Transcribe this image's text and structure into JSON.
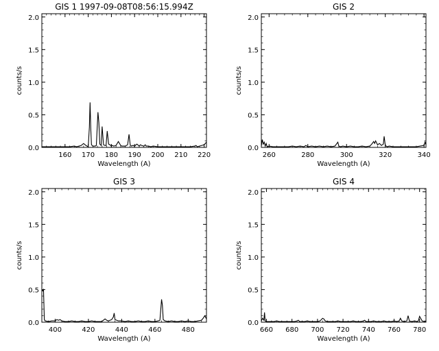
{
  "chart_data": [
    {
      "type": "line",
      "title": "GIS 1 1997-09-08T08:56:15.994Z",
      "xlabel": "Wavelength (A)",
      "ylabel": "counts/s",
      "xlim": [
        150,
        221
      ],
      "ylim": [
        0,
        2.05
      ],
      "xticks": [
        160,
        170,
        180,
        190,
        200,
        210,
        220
      ],
      "yticks": [
        0.0,
        0.5,
        1.0,
        1.5,
        2.0
      ],
      "series": [
        {
          "x": [
            150,
            152,
            154,
            156,
            158,
            160,
            162,
            164,
            165,
            166,
            167,
            168,
            169,
            170,
            170.5,
            170.8,
            171.1,
            171.4,
            172,
            173,
            173.5,
            174.2,
            174.6,
            175,
            175.6,
            176,
            176.6,
            177.2,
            177.7,
            178.2,
            178.8,
            179.4,
            179.9,
            180.4,
            181,
            182,
            183,
            184,
            184.5,
            185,
            186,
            187,
            187.6,
            188.1,
            188.6,
            189.3,
            190,
            191,
            192,
            192.5,
            193,
            194,
            194.6,
            195,
            196,
            197,
            198,
            200,
            202,
            204,
            206,
            208,
            210,
            212,
            214,
            216,
            216.5,
            217,
            218,
            219,
            220,
            221
          ],
          "y": [
            0.01,
            0.01,
            0.01,
            0.01,
            0.01,
            0.01,
            0.01,
            0.02,
            0.01,
            0.02,
            0.03,
            0.06,
            0.03,
            0.01,
            0.31,
            0.69,
            0.29,
            0.04,
            0.02,
            0.02,
            0.03,
            0.54,
            0.38,
            0.05,
            0.03,
            0.32,
            0.04,
            0.03,
            0.03,
            0.25,
            0.05,
            0.04,
            0.02,
            0.03,
            0.02,
            0.03,
            0.09,
            0.03,
            0.02,
            0.02,
            0.02,
            0.04,
            0.2,
            0.04,
            0.02,
            0.03,
            0.02,
            0.05,
            0.02,
            0.04,
            0.03,
            0.02,
            0.04,
            0.02,
            0.02,
            0.01,
            0.02,
            0.01,
            0.01,
            0.01,
            0.01,
            0.01,
            0.01,
            0.01,
            0.01,
            0.02,
            0.03,
            0.01,
            0.02,
            0.03,
            0.04,
            0.08
          ]
        }
      ]
    },
    {
      "type": "line",
      "title": "GIS 2",
      "xlabel": "Wavelength (A)",
      "ylabel": "counts/s",
      "xlim": [
        256,
        341
      ],
      "ylim": [
        0,
        2.05
      ],
      "xticks": [
        260,
        280,
        300,
        320,
        340
      ],
      "yticks": [
        0.0,
        0.5,
        1.0,
        1.5,
        2.0
      ],
      "series": [
        {
          "x": [
            256,
            256.5,
            257,
            257.5,
            258,
            258.5,
            259,
            260,
            262,
            264,
            266,
            268,
            270,
            272,
            274,
            276,
            278,
            279,
            280,
            282,
            284,
            286,
            288,
            290,
            292,
            294,
            295.5,
            296,
            297,
            298,
            300,
            302,
            304,
            306,
            308,
            310,
            312,
            313,
            314,
            314.5,
            315,
            316,
            317,
            318,
            319,
            319.4,
            320,
            321,
            322,
            324,
            326,
            328,
            330,
            332,
            334,
            336,
            338,
            340,
            340.5,
            341
          ],
          "y": [
            0.02,
            0.12,
            0.05,
            0.08,
            0.02,
            0.06,
            0.01,
            0.02,
            0.01,
            0.01,
            0.01,
            0.01,
            0.01,
            0.02,
            0.01,
            0.02,
            0.01,
            0.03,
            0.01,
            0.02,
            0.01,
            0.02,
            0.01,
            0.02,
            0.01,
            0.02,
            0.08,
            0.02,
            0.01,
            0.02,
            0.01,
            0.02,
            0.01,
            0.01,
            0.02,
            0.01,
            0.02,
            0.05,
            0.09,
            0.06,
            0.1,
            0.04,
            0.06,
            0.03,
            0.05,
            0.17,
            0.03,
            0.01,
            0.02,
            0.01,
            0.01,
            0.01,
            0.01,
            0.01,
            0.01,
            0.01,
            0.02,
            0.03,
            0.08,
            0.04
          ]
        }
      ]
    },
    {
      "type": "line",
      "title": "GIS 3",
      "xlabel": "Wavelength (A)",
      "ylabel": "counts/s",
      "xlim": [
        392,
        491
      ],
      "ylim": [
        0,
        2.05
      ],
      "xticks": [
        400,
        420,
        440,
        460,
        480
      ],
      "yticks": [
        0.0,
        0.5,
        1.0,
        1.5,
        2.0
      ],
      "series": [
        {
          "x": [
            392,
            392.5,
            393,
            393.5,
            394,
            396,
            398,
            400,
            401,
            402,
            403,
            404,
            406,
            408,
            410,
            412,
            414,
            416,
            418,
            420,
            422,
            424,
            426,
            428,
            429,
            430,
            431,
            432,
            434,
            435,
            435.5,
            436,
            437,
            438,
            440,
            442,
            444,
            446,
            448,
            450,
            452,
            454,
            456,
            458,
            460,
            462,
            463,
            464,
            464.5,
            465,
            466,
            468,
            470,
            472,
            474,
            476,
            478,
            480,
            482,
            484,
            486,
            488,
            489,
            490,
            491
          ],
          "y": [
            0.5,
            0.48,
            0.5,
            0.04,
            0.02,
            0.01,
            0.02,
            0.02,
            0.04,
            0.03,
            0.04,
            0.02,
            0.01,
            0.01,
            0.02,
            0.01,
            0.01,
            0.02,
            0.01,
            0.01,
            0.02,
            0.01,
            0.01,
            0.01,
            0.03,
            0.05,
            0.03,
            0.02,
            0.04,
            0.08,
            0.14,
            0.04,
            0.03,
            0.02,
            0.02,
            0.01,
            0.02,
            0.01,
            0.01,
            0.02,
            0.01,
            0.01,
            0.02,
            0.01,
            0.01,
            0.02,
            0.03,
            0.35,
            0.26,
            0.04,
            0.02,
            0.01,
            0.02,
            0.01,
            0.01,
            0.02,
            0.01,
            0.02,
            0.01,
            0.01,
            0.02,
            0.03,
            0.06,
            0.1,
            0.05
          ]
        }
      ]
    },
    {
      "type": "line",
      "title": "GIS 4",
      "xlabel": "Wavelength (A)",
      "ylabel": "counts/s",
      "xlim": [
        656,
        785
      ],
      "ylim": [
        0,
        2.05
      ],
      "xticks": [
        660,
        680,
        700,
        720,
        740,
        760,
        780
      ],
      "yticks": [
        0.0,
        0.5,
        1.0,
        1.5,
        2.0
      ],
      "series": [
        {
          "x": [
            656,
            657,
            658,
            658.5,
            659,
            660,
            662,
            664,
            666,
            668,
            670,
            672,
            674,
            676,
            678,
            680,
            682,
            684,
            685,
            686,
            688,
            690,
            692,
            694,
            696,
            698,
            700,
            702,
            703,
            704,
            705,
            706,
            708,
            710,
            712,
            714,
            716,
            718,
            720,
            722,
            724,
            726,
            728,
            730,
            732,
            734,
            736,
            737,
            738,
            740,
            742,
            744,
            746,
            748,
            750,
            752,
            754,
            756,
            758,
            760,
            762,
            764,
            765,
            766,
            768,
            770,
            771,
            772,
            774,
            776,
            778,
            779,
            780,
            782,
            784,
            785
          ],
          "y": [
            0.02,
            0.06,
            0.03,
            0.15,
            0.02,
            0.01,
            0.01,
            0.01,
            0.01,
            0.02,
            0.01,
            0.01,
            0.01,
            0.01,
            0.01,
            0.01,
            0.01,
            0.02,
            0.03,
            0.01,
            0.01,
            0.01,
            0.02,
            0.01,
            0.01,
            0.01,
            0.01,
            0.02,
            0.04,
            0.06,
            0.05,
            0.02,
            0.01,
            0.01,
            0.01,
            0.01,
            0.02,
            0.01,
            0.01,
            0.01,
            0.01,
            0.01,
            0.02,
            0.01,
            0.01,
            0.01,
            0.02,
            0.03,
            0.01,
            0.01,
            0.01,
            0.02,
            0.01,
            0.01,
            0.01,
            0.02,
            0.01,
            0.01,
            0.01,
            0.02,
            0.01,
            0.02,
            0.06,
            0.02,
            0.01,
            0.02,
            0.1,
            0.02,
            0.01,
            0.02,
            0.01,
            0.02,
            0.09,
            0.02,
            0.01,
            0.02
          ]
        }
      ]
    }
  ]
}
